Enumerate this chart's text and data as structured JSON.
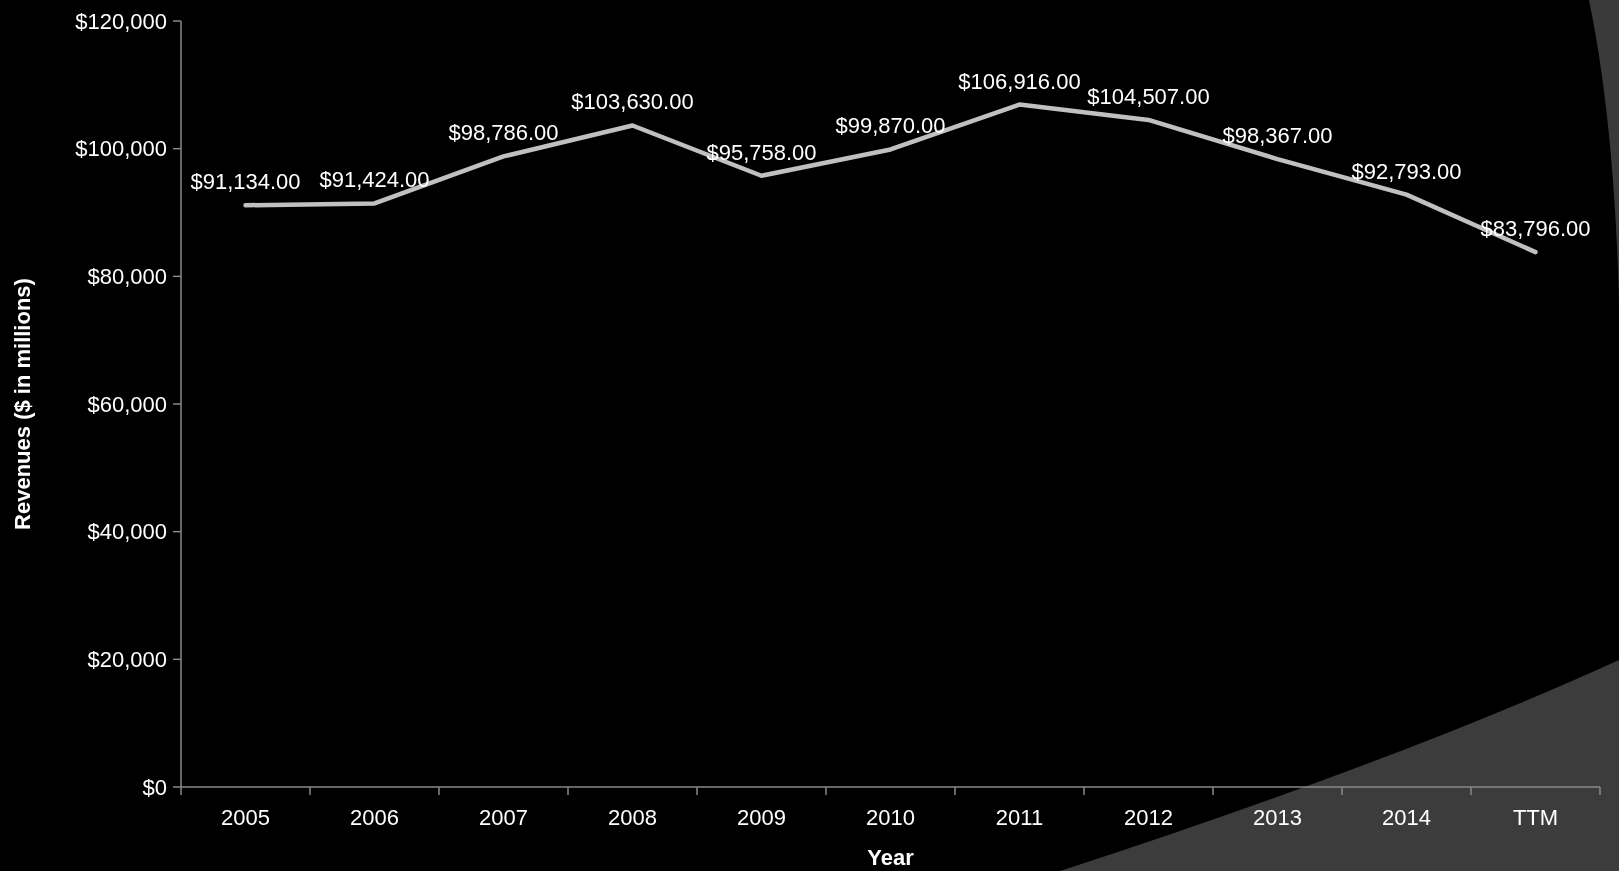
{
  "chart_data": {
    "type": "line",
    "xlabel": "Year",
    "ylabel": "Revenues ($ in millions)",
    "categories": [
      "2005",
      "2006",
      "2007",
      "2008",
      "2009",
      "2010",
      "2011",
      "2012",
      "2013",
      "2014",
      "TTM"
    ],
    "series": [
      {
        "color": "#c0c0c0",
        "values": [
          91134,
          91424,
          98786,
          103630,
          95758,
          99870,
          106916,
          104507,
          98367,
          92793,
          83796
        ],
        "value_labels": [
          "$91,134.00",
          "$91,424.00",
          "$98,786.00",
          "$103,630.00",
          "$95,758.00",
          "$99,870.00",
          "$106,916.00",
          "$104,507.00",
          "$98,367.00",
          "$92,793.00",
          "$83,796.00"
        ]
      }
    ],
    "ylim": [
      0,
      120000
    ],
    "yticks": [
      {
        "value": 0,
        "label": "$0"
      },
      {
        "value": 20000,
        "label": "$20,000"
      },
      {
        "value": 40000,
        "label": "$40,000"
      },
      {
        "value": 60000,
        "label": "$60,000"
      },
      {
        "value": 80000,
        "label": "$80,000"
      },
      {
        "value": 100000,
        "label": "$100,000"
      },
      {
        "value": 120000,
        "label": "$120,000"
      }
    ],
    "marker": "none",
    "line_style": "solid"
  }
}
